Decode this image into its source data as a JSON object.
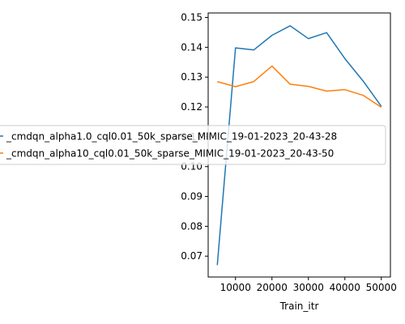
{
  "chart_data": {
    "type": "line",
    "title": "",
    "xlabel": "Train_itr",
    "ylabel": "",
    "xlim": [
      2500,
      52500
    ],
    "ylim": [
      0.063,
      0.1515
    ],
    "xticks": [
      10000,
      20000,
      30000,
      40000,
      50000
    ],
    "xtick_labels": [
      "10000",
      "20000",
      "30000",
      "40000",
      "50000"
    ],
    "yticks": [
      0.07,
      0.08,
      0.09,
      0.1,
      0.11,
      0.12,
      0.13,
      0.14,
      0.15
    ],
    "ytick_labels": [
      "0.07",
      "0.08",
      "0.09",
      "0.10",
      "0.11",
      "0.12",
      "0.13",
      "0.14",
      "0.15"
    ],
    "grid": false,
    "legend_position": "center-left",
    "x": [
      5000,
      10000,
      15000,
      20000,
      25000,
      30000,
      35000,
      40000,
      45000,
      50000
    ],
    "series": [
      {
        "name": "_cmdqn_alpha1.0_cql0.01_50k_sparse_MIMIC_19-01-2023_20-43-28",
        "color": "#1f77b4",
        "values": [
          0.067,
          0.1398,
          0.1391,
          0.144,
          0.1472,
          0.1429,
          0.1449,
          0.1362,
          0.1287,
          0.1202
        ]
      },
      {
        "name": "_cmdqn_alpha10_cql0.01_50k_sparse_MIMIC_19-01-2023_20-43-50",
        "color": "#ff7f0e",
        "values": [
          0.1285,
          0.1268,
          0.1285,
          0.1337,
          0.1276,
          0.1269,
          0.1253,
          0.1258,
          0.1239,
          0.1199
        ]
      }
    ]
  }
}
